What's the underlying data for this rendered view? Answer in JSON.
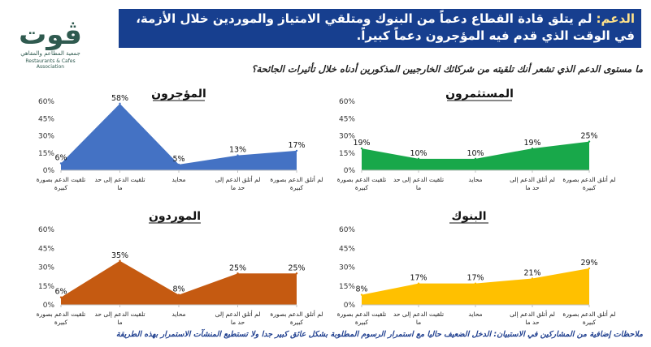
{
  "logo": {
    "glyph": "ڤوت",
    "arabic_name": "جمعية المطاعم والمقاهي",
    "english_name": "Restaurants & Cafes Association",
    "color": "#2f5a4f"
  },
  "banner": {
    "lead": "الدعم:",
    "text": " لم يتلق قادة القطاع دعماً من البنوك ومتلقي الامتياز والموردين خلال الأزمة، في الوقت الذي قدم فيه المؤجرون دعماً كبيراً.",
    "background": "#173f8f"
  },
  "question": "ما مستوى الدعم الذي تشعر أنك تلقيته من شركائك الخارجيين المذكورين أدناه خلال تأثيرات الجائحة؟",
  "footnote": "ملاحظات إضافية من المشاركين في الاستبيان: الدخل الضعيف حاليا مع استمرار الرسوم المطلوبة بشكل عائق كبير جدا ولا تستطيع المنشآت الاستمرار بهذه الطريقة",
  "chart_data": [
    {
      "type": "area",
      "title": "المستثمرون",
      "color": "#18a84a",
      "categories": [
        "تلقيت الدعم بصورة كبيرة",
        "تلقيت الدعم إلى حد ما",
        "محايد",
        "لم أتلق الدعم إلى حد ما",
        "لم أتلق الدعم بصورة كبيرة"
      ],
      "values": [
        19,
        10,
        10,
        19,
        25
      ],
      "labels": [
        "19%",
        "10%",
        "10%",
        "19%",
        "25%"
      ],
      "yticks": [
        "0%",
        "15%",
        "30%",
        "45%",
        "60%"
      ],
      "ylim": [
        0,
        60
      ]
    },
    {
      "type": "area",
      "title": "المؤجرون",
      "color": "#4472c4",
      "categories": [
        "تلقيت الدعم بصورة كبيرة",
        "تلقيت الدعم إلى حد ما",
        "محايد",
        "لم أتلق الدعم إلى حد ما",
        "لم أتلق الدعم بصورة كبيرة"
      ],
      "values": [
        6,
        58,
        5,
        13,
        17
      ],
      "labels": [
        "6%",
        "58%",
        "5%",
        "13%",
        "17%"
      ],
      "yticks": [
        "0%",
        "15%",
        "30%",
        "45%",
        "60%"
      ],
      "ylim": [
        0,
        60
      ]
    },
    {
      "type": "area",
      "title": "البنوك",
      "color": "#ffc000",
      "categories": [
        "تلقيت الدعم بصورة كبيرة",
        "تلقيت الدعم إلى حد ما",
        "محايد",
        "لم أتلق الدعم إلى حد ما",
        "لم أتلق الدعم بصورة كبيرة"
      ],
      "values": [
        8,
        17,
        17,
        21,
        29
      ],
      "labels": [
        "8%",
        "17%",
        "17%",
        "21%",
        "29%"
      ],
      "yticks": [
        "0%",
        "15%",
        "30%",
        "45%",
        "60%"
      ],
      "ylim": [
        0,
        60
      ]
    },
    {
      "type": "area",
      "title": "الموردون",
      "color": "#c55a11",
      "categories": [
        "تلقيت الدعم بصورة كبيرة",
        "تلقيت الدعم إلى حد ما",
        "محايد",
        "لم أتلق الدعم إلى حد ما",
        "لم أتلق الدعم بصورة كبيرة"
      ],
      "values": [
        6,
        35,
        8,
        25,
        25
      ],
      "labels": [
        "6%",
        "35%",
        "8%",
        "25%",
        "25%"
      ],
      "yticks": [
        "0%",
        "15%",
        "30%",
        "45%",
        "60%"
      ],
      "ylim": [
        0,
        60
      ]
    }
  ]
}
